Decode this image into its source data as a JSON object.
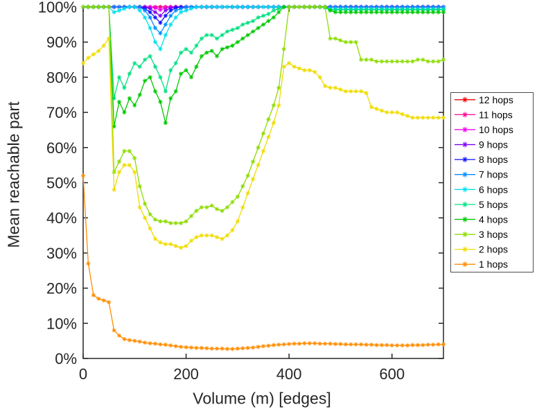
{
  "chart_data": {
    "type": "line",
    "title": "",
    "xlabel": "Volume (m) [edges]",
    "ylabel": "Mean reachable part",
    "xlim": [
      0,
      700
    ],
    "ylim": [
      0,
      100
    ],
    "x_ticks": [
      0,
      200,
      400,
      600
    ],
    "y_ticks": [
      0,
      10,
      20,
      30,
      40,
      50,
      60,
      70,
      80,
      90,
      100
    ],
    "y_tick_suffix": "%",
    "grid": false,
    "legend_position": "right-outside",
    "marker": "asterisk",
    "axis_color": "#262626",
    "x_values": [
      0,
      10,
      20,
      30,
      40,
      50,
      60,
      70,
      80,
      90,
      100,
      110,
      120,
      130,
      140,
      150,
      160,
      170,
      180,
      190,
      200,
      210,
      220,
      230,
      240,
      250,
      260,
      270,
      280,
      290,
      300,
      310,
      320,
      330,
      340,
      350,
      360,
      370,
      380,
      390,
      400,
      410,
      420,
      430,
      440,
      450,
      460,
      470,
      480,
      490,
      500,
      510,
      520,
      530,
      540,
      550,
      560,
      570,
      580,
      590,
      600,
      610,
      620,
      630,
      640,
      650,
      660,
      670,
      680,
      690,
      700
    ],
    "series": [
      {
        "name": "12 hops",
        "color": "#F20000",
        "values": [
          100,
          100,
          100,
          100,
          100,
          100,
          100,
          100,
          100,
          100,
          100,
          100,
          100,
          100,
          100,
          100,
          100,
          100,
          100,
          100,
          100,
          100,
          100,
          100,
          100,
          100,
          100,
          100,
          100,
          100,
          100,
          100,
          100,
          100,
          100,
          100,
          100,
          100,
          100,
          100,
          100,
          100,
          100,
          100,
          100,
          100,
          100,
          100,
          100,
          100,
          100,
          100,
          100,
          100,
          100,
          100,
          100,
          100,
          100,
          100,
          100,
          100,
          100,
          100,
          100,
          100,
          100,
          100,
          100,
          100,
          100
        ]
      },
      {
        "name": "11 hops",
        "color": "#FF0090",
        "values": [
          100,
          100,
          100,
          100,
          100,
          100,
          100,
          100,
          100,
          100,
          100,
          100,
          100,
          100,
          100,
          100,
          100,
          100,
          100,
          100,
          100,
          100,
          100,
          100,
          100,
          100,
          100,
          100,
          100,
          100,
          100,
          100,
          100,
          100,
          100,
          100,
          100,
          100,
          100,
          100,
          100,
          100,
          100,
          100,
          100,
          100,
          100,
          100,
          100,
          100,
          100,
          100,
          100,
          100,
          100,
          100,
          100,
          100,
          100,
          100,
          100,
          100,
          100,
          100,
          100,
          100,
          100,
          100,
          100,
          100,
          100
        ]
      },
      {
        "name": "10 hops",
        "color": "#F000F0",
        "values": [
          100,
          100,
          100,
          100,
          100,
          100,
          100,
          100,
          100,
          100,
          100,
          100,
          100,
          100,
          99.7,
          99.2,
          99.7,
          100,
          100,
          100,
          100,
          100,
          100,
          100,
          100,
          100,
          100,
          100,
          100,
          100,
          100,
          100,
          100,
          100,
          100,
          100,
          100,
          100,
          100,
          100,
          100,
          100,
          100,
          100,
          100,
          100,
          100,
          100,
          100,
          100,
          100,
          100,
          100,
          100,
          100,
          100,
          100,
          100,
          100,
          100,
          100,
          100,
          100,
          100,
          100,
          100,
          100,
          100,
          100,
          100,
          100
        ]
      },
      {
        "name": "9 hops",
        "color": "#7B00F5",
        "values": [
          100,
          100,
          100,
          100,
          100,
          100,
          100,
          100,
          100,
          100,
          100,
          100,
          100,
          99.5,
          98.5,
          97.5,
          99,
          99.7,
          100,
          100,
          100,
          100,
          100,
          100,
          100,
          100,
          100,
          100,
          100,
          100,
          100,
          100,
          100,
          100,
          100,
          100,
          100,
          100,
          100,
          100,
          100,
          100,
          100,
          100,
          100,
          100,
          100,
          100,
          100,
          100,
          100,
          100,
          100,
          100,
          100,
          100,
          100,
          100,
          100,
          100,
          100,
          100,
          100,
          100,
          100,
          100,
          100,
          100,
          100,
          100,
          100
        ]
      },
      {
        "name": "8 hops",
        "color": "#0F0FFF",
        "values": [
          100,
          100,
          100,
          100,
          100,
          100,
          100,
          100,
          100,
          100,
          100,
          100,
          99.5,
          98.5,
          97,
          95.5,
          97.5,
          99,
          99.7,
          100,
          100,
          100,
          100,
          100,
          100,
          100,
          100,
          100,
          100,
          100,
          100,
          100,
          100,
          100,
          100,
          100,
          100,
          100,
          100,
          100,
          100,
          100,
          100,
          100,
          100,
          100,
          100,
          100,
          100,
          100,
          100,
          100,
          100,
          100,
          100,
          100,
          100,
          100,
          100,
          100,
          100,
          100,
          100,
          100,
          100,
          100,
          100,
          100,
          100,
          100,
          100
        ]
      },
      {
        "name": "7 hops",
        "color": "#008CFF",
        "values": [
          100,
          100,
          100,
          100,
          100,
          100,
          100,
          100,
          100,
          100,
          100,
          100,
          99,
          97,
          94,
          92.5,
          95,
          97.5,
          99,
          99.5,
          100,
          100,
          100,
          100,
          100,
          100,
          100,
          100,
          100,
          100,
          100,
          100,
          100,
          100,
          100,
          100,
          100,
          100,
          100,
          100,
          100,
          100,
          100,
          100,
          100,
          100,
          100,
          100,
          100,
          100,
          100,
          100,
          100,
          100,
          100,
          100,
          100,
          100,
          100,
          100,
          100,
          100,
          100,
          100,
          100,
          100,
          100,
          100,
          100,
          100,
          100
        ]
      },
      {
        "name": "6 hops",
        "color": "#00E1F0",
        "values": [
          100,
          100,
          100,
          100,
          100,
          100,
          98.5,
          99,
          99.5,
          100,
          100,
          99,
          97,
          94,
          90,
          88,
          92,
          95,
          97,
          98.5,
          99,
          99.5,
          100,
          100,
          100,
          100,
          100,
          100,
          100,
          100,
          100,
          100,
          100,
          100,
          100,
          100,
          100,
          100,
          100,
          100,
          100,
          100,
          100,
          100,
          100,
          100,
          100,
          99.8,
          99.4,
          99.4,
          99.4,
          99.4,
          99.4,
          99.4,
          99.4,
          99.4,
          99.4,
          99.4,
          99.4,
          99.4,
          99.4,
          99.4,
          99.4,
          99.4,
          99.4,
          99.4,
          99.4,
          99.4,
          99.4,
          99.4,
          99.4
        ]
      },
      {
        "name": "5 hops",
        "color": "#00E080",
        "values": [
          100,
          100,
          100,
          100,
          100,
          100,
          74,
          80,
          77,
          81,
          84,
          83,
          85,
          86,
          83,
          80,
          76,
          82,
          84,
          87,
          88,
          87,
          89,
          91,
          92,
          92,
          91,
          92,
          93,
          93.5,
          94,
          95,
          95.5,
          96,
          97,
          97.5,
          98,
          99,
          99.5,
          100,
          100,
          100,
          100,
          100,
          100,
          100,
          100,
          99.8,
          99.2,
          99.2,
          99.2,
          99.2,
          99.2,
          99.2,
          99.2,
          99.2,
          99.2,
          99.2,
          99.2,
          99.2,
          99.2,
          99.2,
          99.2,
          99.2,
          99.2,
          99.2,
          99.2,
          99.2,
          99.2,
          99.2,
          99.2
        ]
      },
      {
        "name": "4 hops",
        "color": "#00C800",
        "values": [
          100,
          100,
          100,
          100,
          100,
          100,
          66,
          73,
          70,
          74,
          72,
          75,
          79,
          80,
          76,
          73,
          67,
          74,
          76,
          81,
          82,
          80,
          83,
          86,
          87,
          87.5,
          86,
          88,
          88.5,
          89,
          90,
          91,
          92,
          93,
          94,
          95,
          96,
          97,
          98.5,
          100,
          100,
          100,
          100,
          100,
          100,
          100,
          100,
          100,
          99,
          98.5,
          98.5,
          98.5,
          98.5,
          98.5,
          98.5,
          98.5,
          98.5,
          98.5,
          98.5,
          98.5,
          98.5,
          98.5,
          98.5,
          98.5,
          98.5,
          98.5,
          98.5,
          98.5,
          98.5,
          98.5,
          98.5
        ]
      },
      {
        "name": "3 hops",
        "color": "#8CDC00",
        "values": [
          100,
          100,
          100,
          100,
          100,
          100,
          53,
          56,
          59,
          59,
          57,
          49,
          44,
          41,
          39.5,
          39,
          39,
          38.5,
          38.5,
          38.5,
          39,
          40.5,
          42,
          43,
          43,
          43.5,
          42.5,
          42,
          43,
          44.5,
          46,
          49,
          52,
          56,
          60,
          64,
          68,
          72,
          77,
          88,
          100,
          100,
          100,
          100,
          100,
          100,
          100,
          100,
          91,
          91,
          90.5,
          90,
          90,
          90,
          85,
          85,
          85,
          84.5,
          84.5,
          84.5,
          84.5,
          84.5,
          84.5,
          84.5,
          84.5,
          85,
          85,
          84.5,
          84.5,
          84.5,
          85
        ]
      },
      {
        "name": "2 hops",
        "color": "#F0DC00",
        "values": [
          84,
          85.5,
          86.5,
          87.5,
          89,
          91,
          48,
          53,
          55,
          55,
          53,
          43,
          40,
          37,
          34,
          33,
          32.5,
          32.5,
          32,
          31.5,
          32,
          33.5,
          34.5,
          35,
          35,
          35,
          34.5,
          34,
          35,
          36.5,
          39,
          43,
          47,
          51,
          55,
          59,
          63,
          67,
          72,
          83,
          84,
          83,
          82.5,
          82,
          82,
          81.5,
          80,
          77.5,
          77,
          77,
          76.5,
          76,
          76,
          76,
          76,
          75.5,
          71.5,
          71,
          70.5,
          70,
          70,
          70,
          69.5,
          69,
          68.5,
          68.5,
          68.5,
          68.5,
          68.5,
          68.5,
          68.5
        ]
      },
      {
        "name": "1 hops",
        "color": "#FF8C00",
        "values": [
          52,
          27,
          18,
          17,
          16.5,
          16,
          8,
          6.5,
          5.5,
          5.2,
          5,
          4.8,
          4.5,
          4.3,
          4.2,
          4,
          3.9,
          3.7,
          3.5,
          3.3,
          3.2,
          3.1,
          3,
          3,
          2.9,
          2.8,
          2.8,
          2.8,
          2.7,
          2.7,
          2.8,
          2.9,
          3,
          3.1,
          3.3,
          3.5,
          3.6,
          3.8,
          3.9,
          4,
          4.1,
          4.2,
          4.2,
          4.3,
          4.3,
          4.3,
          4.2,
          4.2,
          4.2,
          4.1,
          4.1,
          4,
          4,
          4,
          4,
          3.9,
          3.9,
          3.8,
          3.8,
          3.8,
          3.7,
          3.7,
          3.7,
          3.7,
          3.8,
          3.8,
          3.8,
          3.9,
          3.9,
          4,
          4
        ]
      }
    ]
  }
}
